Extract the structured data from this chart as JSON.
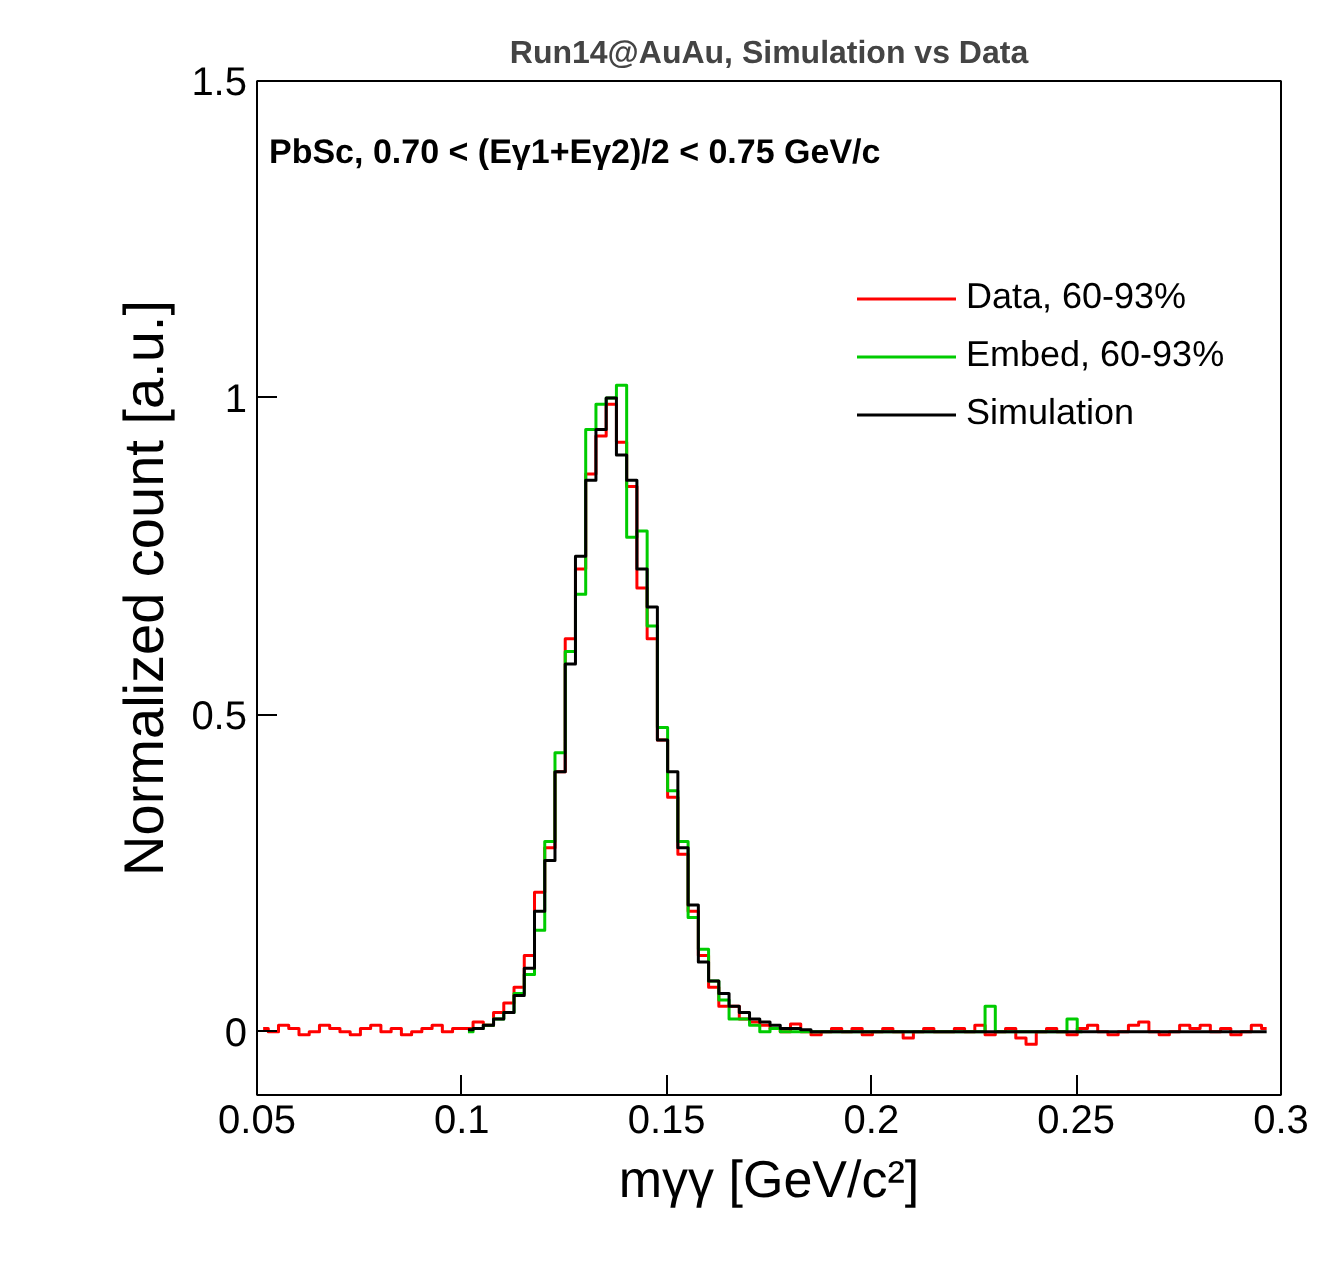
{
  "chart_data": {
    "type": "step",
    "title": "Run14@AuAu, Simulation vs Data",
    "xlabel": "mγγ [GeV/c²]",
    "ylabel": "Normalized count [a.u.]",
    "annotations": [
      "PbSc, 0.70 < (Eγ1+Eγ2)/2 < 0.75 GeV/c"
    ],
    "x": [
      0.0515,
      0.054,
      0.0565,
      0.059,
      0.0615,
      0.064,
      0.0665,
      0.069,
      0.0715,
      0.074,
      0.0765,
      0.079,
      0.0815,
      0.084,
      0.0865,
      0.089,
      0.0915,
      0.094,
      0.0965,
      0.099,
      0.1015,
      0.104,
      0.1065,
      0.109,
      0.1115,
      0.114,
      0.1165,
      0.119,
      0.1215,
      0.124,
      0.1265,
      0.129,
      0.1315,
      0.134,
      0.1365,
      0.139,
      0.1415,
      0.144,
      0.1465,
      0.149,
      0.1515,
      0.154,
      0.1565,
      0.159,
      0.1615,
      0.164,
      0.1665,
      0.169,
      0.1715,
      0.174,
      0.1765,
      0.179,
      0.1815,
      0.184,
      0.1865,
      0.189,
      0.1915,
      0.194,
      0.1965,
      0.199,
      0.2015,
      0.204,
      0.2065,
      0.209,
      0.2115,
      0.214,
      0.2165,
      0.219,
      0.2215,
      0.224,
      0.2265,
      0.229,
      0.2315,
      0.234,
      0.2365,
      0.239,
      0.2415,
      0.244,
      0.2465,
      0.249,
      0.2515,
      0.254,
      0.2565,
      0.259,
      0.2615,
      0.264,
      0.2665,
      0.269,
      0.2715,
      0.274,
      0.2765,
      0.279,
      0.2815,
      0.284,
      0.2865,
      0.289,
      0.2915,
      0.294,
      0.2965
    ],
    "series": [
      {
        "name": "Data, 60-93%",
        "color": "#ff0000",
        "values": [
          0.005,
          0.0,
          0.01,
          0.005,
          -0.005,
          0.0,
          0.01,
          0.005,
          0.0,
          -0.005,
          0.005,
          0.01,
          0.0,
          0.005,
          -0.005,
          0.0,
          0.005,
          0.01,
          0.0,
          0.005,
          0.005,
          0.015,
          0.01,
          0.03,
          0.045,
          0.07,
          0.12,
          0.22,
          0.29,
          0.41,
          0.62,
          0.73,
          0.88,
          0.94,
          0.99,
          0.93,
          0.86,
          0.7,
          0.62,
          0.46,
          0.37,
          0.28,
          0.19,
          0.12,
          0.07,
          0.04,
          0.04,
          0.02,
          0.015,
          0.01,
          0.005,
          0.0,
          0.012,
          0.0,
          -0.005,
          0.0,
          0.005,
          0.0,
          0.005,
          -0.005,
          0.0,
          0.005,
          0.0,
          -0.01,
          0.0,
          0.005,
          0.0,
          0.0,
          0.005,
          0.0,
          0.01,
          -0.005,
          0.0,
          0.005,
          -0.01,
          -0.02,
          0.0,
          0.005,
          0.0,
          -0.005,
          0.005,
          0.01,
          0.0,
          -0.005,
          0.0,
          0.01,
          0.015,
          0.0,
          -0.005,
          0.0,
          0.01,
          0.005,
          0.01,
          0.0,
          0.005,
          -0.005,
          0.0,
          0.01,
          0.005
        ]
      },
      {
        "name": "Embed, 60-93%",
        "color": "#00cc00",
        "values": [
          null,
          null,
          null,
          null,
          null,
          null,
          null,
          null,
          null,
          null,
          null,
          null,
          null,
          null,
          null,
          null,
          null,
          null,
          null,
          null,
          0.0,
          0.005,
          0.01,
          0.02,
          0.03,
          0.06,
          0.09,
          0.16,
          0.3,
          0.44,
          0.6,
          0.69,
          0.95,
          0.99,
          1.0,
          1.02,
          0.78,
          0.79,
          0.64,
          0.48,
          0.38,
          0.3,
          0.18,
          0.13,
          0.08,
          0.05,
          0.02,
          0.02,
          0.01,
          0.0,
          0.005,
          0,
          0,
          0,
          0,
          0,
          0,
          0,
          0,
          0,
          0,
          0,
          0,
          0,
          0,
          0,
          0,
          0,
          0,
          0,
          0,
          0.04,
          0,
          0,
          0,
          0,
          0,
          0,
          0,
          0.02,
          0.0,
          null,
          null,
          null,
          null,
          null,
          null,
          null,
          null,
          null,
          null,
          null,
          null,
          null,
          null,
          null,
          null,
          null,
          null
        ]
      },
      {
        "name": "Simulation",
        "color": "#000000",
        "values": [
          null,
          null,
          null,
          null,
          null,
          null,
          null,
          null,
          null,
          null,
          null,
          null,
          null,
          null,
          null,
          null,
          null,
          null,
          null,
          null,
          0.003,
          0.005,
          0.01,
          0.02,
          0.03,
          0.057,
          0.1,
          0.19,
          0.27,
          0.41,
          0.58,
          0.75,
          0.87,
          0.95,
          1.0,
          0.91,
          0.87,
          0.73,
          0.67,
          0.46,
          0.41,
          0.29,
          0.2,
          0.11,
          0.08,
          0.06,
          0.04,
          0.03,
          0.02,
          0.015,
          0.01,
          0.005,
          0.005,
          0.003,
          0,
          0,
          0,
          0,
          0,
          0,
          0,
          0,
          0,
          0,
          0,
          0,
          0,
          0,
          0,
          0,
          0,
          0,
          0,
          0,
          0,
          0,
          0,
          0,
          0,
          0,
          0,
          0,
          0,
          0,
          0,
          0,
          0,
          0,
          0,
          0,
          0,
          0,
          0,
          0,
          0,
          0,
          0,
          0,
          0
        ]
      }
    ],
    "xlim": [
      0.05,
      0.3
    ],
    "xticks": [
      0.05,
      0.1,
      0.15,
      0.2,
      0.25,
      0.3
    ],
    "ylim": [
      -0.1,
      1.5
    ],
    "yticks": [
      0,
      0.5,
      1,
      1.5
    ],
    "grid": false,
    "legend": "top right",
    "marker": "none",
    "line_style": "solid"
  }
}
